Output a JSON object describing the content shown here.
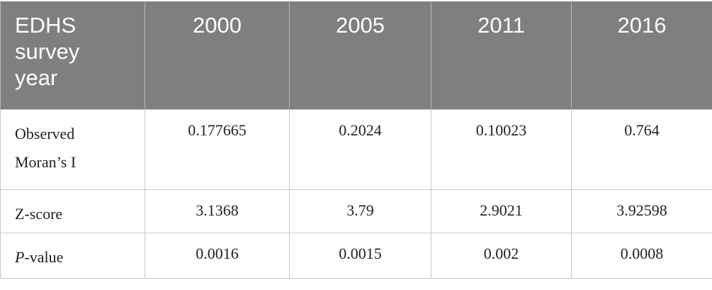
{
  "header": {
    "label": "EDHS survey year",
    "years": [
      "2000",
      "2005",
      "2011",
      "2016"
    ]
  },
  "rows": [
    {
      "label": "Observed Moran’s I",
      "values": [
        "0.177665",
        "0.2024",
        "0.10023",
        "0.764"
      ]
    },
    {
      "label": "Z-score",
      "values": [
        "3.1368",
        "3.79",
        "2.9021",
        "3.92598"
      ]
    },
    {
      "label_italic": "P",
      "label_rest": "-value",
      "values": [
        "0.0016",
        "0.0015",
        "0.002",
        "0.0008"
      ]
    }
  ],
  "colors": {
    "header_bg": "#7f7f7e",
    "header_text": "#ffffff",
    "border": "#c8c8c8"
  }
}
